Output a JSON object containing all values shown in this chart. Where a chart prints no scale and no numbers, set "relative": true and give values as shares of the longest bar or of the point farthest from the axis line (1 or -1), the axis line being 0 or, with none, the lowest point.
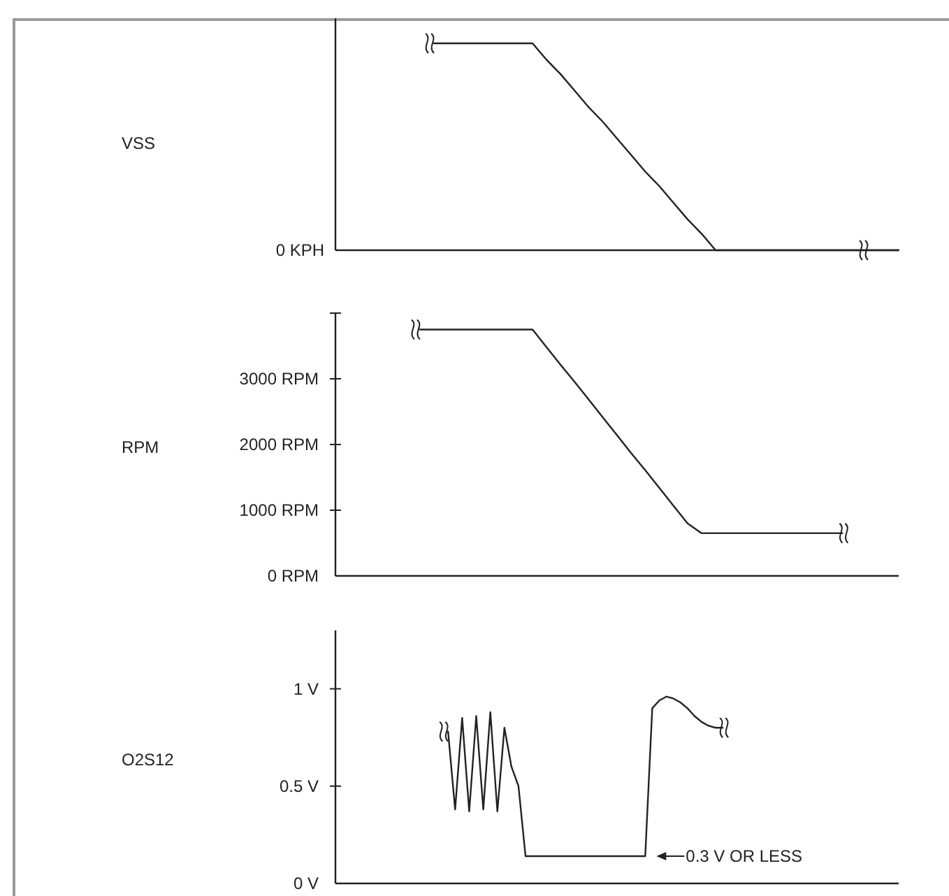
{
  "chart_data": [
    {
      "type": "line",
      "ylabel": "VSS",
      "relative": true,
      "color": "#222222",
      "annotations": [
        "0 KPH"
      ],
      "categories": [
        null,
        null,
        null,
        null,
        null,
        null,
        null,
        null,
        null,
        null,
        null,
        null,
        null,
        null,
        null,
        null,
        null,
        null,
        null,
        null,
        null,
        null,
        null,
        null,
        null,
        null,
        null,
        null,
        null,
        null,
        null,
        null,
        null,
        null,
        null,
        null,
        null,
        null,
        null,
        null,
        null
      ],
      "values": [
        null,
        null,
        null,
        null,
        null,
        null,
        null,
        1,
        1,
        1,
        1,
        1,
        1,
        1,
        1,
        0.92,
        0.85,
        0.77,
        0.69,
        0.62,
        0.54,
        0.46,
        0.38,
        0.31,
        0.23,
        0.15,
        0.08,
        0,
        0,
        0,
        0,
        0,
        0,
        0,
        0,
        0,
        0,
        0,
        0,
        0,
        0
      ]
    },
    {
      "type": "line",
      "ylabel": "RPM",
      "color": "#222222",
      "ylim": [
        0,
        4000
      ],
      "yticks": [
        {
          "value": 0,
          "label": "0 RPM"
        },
        {
          "value": 1000,
          "label": "1000 RPM"
        },
        {
          "value": 2000,
          "label": "2000 RPM"
        },
        {
          "value": 3000,
          "label": "3000 RPM"
        },
        {
          "value": 4000,
          "label": null
        }
      ],
      "categories": [
        null,
        null,
        null,
        null,
        null,
        null,
        null,
        null,
        null,
        null,
        null,
        null,
        null,
        null,
        null,
        null,
        null,
        null,
        null,
        null,
        null,
        null,
        null,
        null,
        null,
        null,
        null,
        null,
        null,
        null,
        null,
        null,
        null,
        null,
        null,
        null,
        null,
        null,
        null,
        null,
        null
      ],
      "values": [
        null,
        null,
        null,
        null,
        null,
        null,
        3750,
        3750,
        3750,
        3750,
        3750,
        3750,
        3750,
        3750,
        3750,
        3480,
        3210,
        2950,
        2680,
        2410,
        2140,
        1870,
        1610,
        1340,
        1070,
        800,
        650,
        650,
        650,
        650,
        650,
        650,
        650,
        650,
        650,
        650,
        650,
        null,
        null,
        null,
        null
      ]
    },
    {
      "type": "line",
      "ylabel": "O2S12",
      "color": "#222222",
      "ylim": [
        0,
        1.3
      ],
      "yticks": [
        {
          "value": 0,
          "label": "0 V"
        },
        {
          "value": 0.5,
          "label": "0.5 V"
        },
        {
          "value": 1,
          "label": "1 V"
        }
      ],
      "annotations": [
        "0.3 V OR LESS"
      ],
      "categories": [
        null,
        null,
        null,
        null,
        null,
        null,
        null,
        null,
        null,
        null,
        null,
        null,
        null,
        null,
        null,
        null,
        null,
        null,
        null,
        null,
        null,
        null,
        null,
        null,
        null,
        null,
        null,
        null,
        null,
        null,
        null,
        null,
        null,
        null,
        null,
        null,
        null,
        null,
        null,
        null,
        null,
        null,
        null,
        null,
        null,
        null,
        null,
        null,
        null,
        null,
        null,
        null,
        null,
        null,
        null,
        null,
        null,
        null,
        null,
        null,
        null,
        null,
        null,
        null,
        null,
        null,
        null,
        null,
        null,
        null,
        null,
        null,
        null,
        null,
        null,
        null,
        null,
        null,
        null,
        null,
        null
      ],
      "values": [
        null,
        null,
        null,
        null,
        null,
        null,
        null,
        null,
        null,
        null,
        null,
        null,
        null,
        null,
        null,
        null,
        0.78,
        0.38,
        0.85,
        0.37,
        0.86,
        0.38,
        0.88,
        0.37,
        0.8,
        0.6,
        0.5,
        0.14,
        0.14,
        0.14,
        0.14,
        0.14,
        0.14,
        0.14,
        0.14,
        0.14,
        0.14,
        0.14,
        0.14,
        0.14,
        0.14,
        0.14,
        0.14,
        0.14,
        0.14,
        0.9,
        0.94,
        0.96,
        0.95,
        0.93,
        0.9,
        0.86,
        0.83,
        0.81,
        0.8,
        0.8,
        null,
        null,
        null,
        null,
        null,
        null,
        null,
        null,
        null,
        null,
        null,
        null,
        null,
        null,
        null,
        null,
        null,
        null,
        null,
        null,
        null,
        null,
        null,
        null,
        null
      ]
    }
  ]
}
